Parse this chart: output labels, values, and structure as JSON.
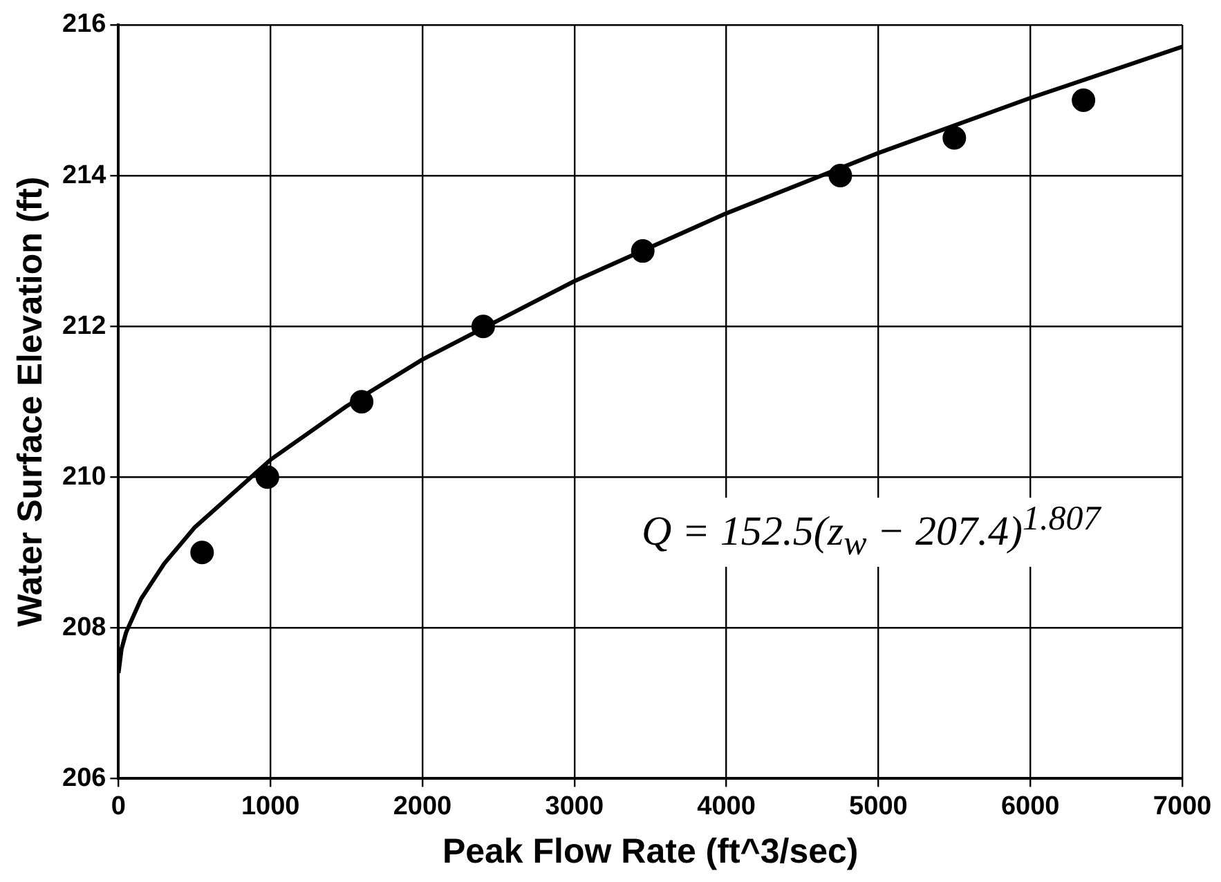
{
  "chart_data": {
    "type": "scatter",
    "xlabel": "Peak Flow Rate (ft^3/sec)",
    "ylabel": "Water Surface Elevation (ft)",
    "x": [
      550,
      980,
      1600,
      2400,
      3450,
      4750,
      5500,
      6350
    ],
    "series": [
      {
        "color": "#000000",
        "marker": "circle",
        "values": [
          209,
          210,
          211,
          212,
          213,
          214,
          214.5,
          215
        ]
      },
      {
        "type": "line",
        "color": "#000000",
        "marker": "none",
        "x": [
          0,
          20,
          50,
          150,
          300,
          500,
          1000,
          1500,
          2000,
          3000,
          4000,
          5000,
          6000,
          7000
        ],
        "values": [
          207.4,
          207.72,
          207.94,
          208.39,
          208.85,
          209.33,
          210.23,
          210.94,
          211.56,
          212.6,
          213.5,
          214.3,
          215.03,
          215.71
        ]
      }
    ],
    "xlim": [
      0,
      7000
    ],
    "xticks": [
      0,
      1000,
      2000,
      3000,
      4000,
      5000,
      6000,
      7000
    ],
    "ylim": [
      206,
      216
    ],
    "yticks": [
      206,
      208,
      210,
      212,
      214,
      216
    ],
    "grid": true,
    "legend": false,
    "annotations": [
      "Q = 152.5(z$_{w}$ − 207.4)$^{1.807}$"
    ]
  }
}
